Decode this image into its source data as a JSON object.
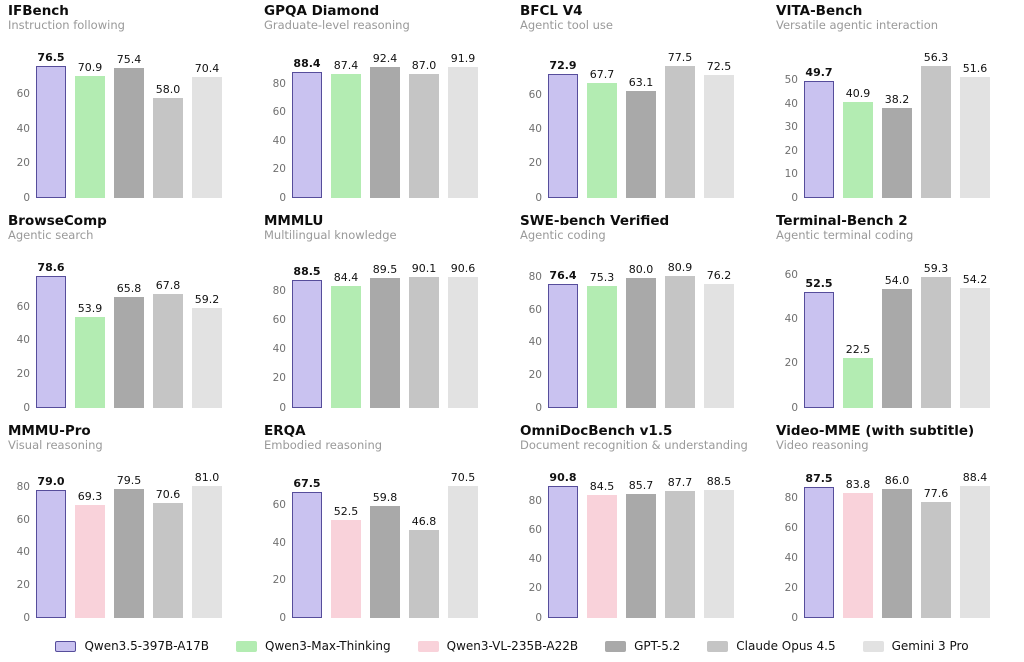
{
  "legend": [
    {
      "label": "Qwen3.5-397B-A17B",
      "color": "#c9c2f0",
      "border": "#564d9b"
    },
    {
      "label": "Qwen3-Max-Thinking",
      "color": "#b3ecb2"
    },
    {
      "label": "Qwen3-VL-235B-A22B",
      "color": "#f9d2da"
    },
    {
      "label": "GPT-5.2",
      "color": "#a9a9a9"
    },
    {
      "label": "Claude Opus 4.5",
      "color": "#c5c5c5"
    },
    {
      "label": "Gemini 3 Pro",
      "color": "#e2e2e2"
    }
  ],
  "chart_data": [
    {
      "type": "bar",
      "title": "IFBench",
      "subtitle": "Instruction following",
      "categories": [
        "Qwen3.5-397B-A17B",
        "Qwen3-Max-Thinking",
        "GPT-5.2",
        "Claude Opus 4.5",
        "Gemini 3 Pro"
      ],
      "values": [
        76.5,
        70.9,
        75.4,
        58.0,
        70.4
      ],
      "yticks": [
        0,
        20,
        40,
        60
      ],
      "ylim": [
        0,
        86
      ],
      "grid": false,
      "legend_position": "bottom-shared"
    },
    {
      "type": "bar",
      "title": "GPQA Diamond",
      "subtitle": "Graduate-level reasoning",
      "categories": [
        "Qwen3.5-397B-A17B",
        "Qwen3-Max-Thinking",
        "GPT-5.2",
        "Claude Opus 4.5",
        "Gemini 3 Pro"
      ],
      "values": [
        88.4,
        87.4,
        92.4,
        87.0,
        91.9
      ],
      "yticks": [
        0,
        20,
        40,
        60,
        80
      ],
      "ylim": [
        0,
        104
      ],
      "grid": false,
      "legend_position": "bottom-shared"
    },
    {
      "type": "bar",
      "title": "BFCL V4",
      "subtitle": "Agentic tool use",
      "categories": [
        "Qwen3.5-397B-A17B",
        "Qwen3-Max-Thinking",
        "GPT-5.2",
        "Claude Opus 4.5",
        "Gemini 3 Pro"
      ],
      "values": [
        72.9,
        67.7,
        63.1,
        77.5,
        72.5
      ],
      "yticks": [
        0,
        20,
        40,
        60
      ],
      "ylim": [
        0,
        87
      ],
      "grid": false,
      "legend_position": "bottom-shared"
    },
    {
      "type": "bar",
      "title": "VITA-Bench",
      "subtitle": "Versatile agentic interaction",
      "categories": [
        "Qwen3.5-397B-A17B",
        "Qwen3-Max-Thinking",
        "GPT-5.2",
        "Claude Opus 4.5",
        "Gemini 3 Pro"
      ],
      "values": [
        49.7,
        40.9,
        38.2,
        56.3,
        51.6
      ],
      "yticks": [
        0,
        10,
        20,
        30,
        40,
        50
      ],
      "ylim": [
        0,
        63
      ],
      "grid": false,
      "legend_position": "bottom-shared"
    },
    {
      "type": "bar",
      "title": "BrowseComp",
      "subtitle": "Agentic search",
      "categories": [
        "Qwen3.5-397B-A17B",
        "Qwen3-Max-Thinking",
        "GPT-5.2",
        "Claude Opus 4.5",
        "Gemini 3 Pro"
      ],
      "values": [
        78.6,
        53.9,
        65.8,
        67.8,
        59.2
      ],
      "yticks": [
        0,
        20,
        40,
        60
      ],
      "ylim": [
        0,
        88
      ],
      "grid": false,
      "legend_position": "bottom-shared"
    },
    {
      "type": "bar",
      "title": "MMMLU",
      "subtitle": "Multilingual knowledge",
      "categories": [
        "Qwen3.5-397B-A17B",
        "Qwen3-Max-Thinking",
        "GPT-5.2",
        "Claude Opus 4.5",
        "Gemini 3 Pro"
      ],
      "values": [
        88.5,
        84.4,
        89.5,
        90.1,
        90.6
      ],
      "yticks": [
        0,
        20,
        40,
        60,
        80
      ],
      "ylim": [
        0,
        102
      ],
      "grid": false,
      "legend_position": "bottom-shared"
    },
    {
      "type": "bar",
      "title": "SWE-bench Verified",
      "subtitle": "Agentic coding",
      "categories": [
        "Qwen3.5-397B-A17B",
        "Qwen3-Max-Thinking",
        "GPT-5.2",
        "Claude Opus 4.5",
        "Gemini 3 Pro"
      ],
      "values": [
        76.4,
        75.3,
        80.0,
        80.9,
        76.2
      ],
      "yticks": [
        0,
        20,
        40,
        60,
        80
      ],
      "ylim": [
        0,
        91
      ],
      "grid": false,
      "legend_position": "bottom-shared"
    },
    {
      "type": "bar",
      "title": "Terminal-Bench 2",
      "subtitle": "Agentic terminal coding",
      "categories": [
        "Qwen3.5-397B-A17B",
        "Qwen3-Max-Thinking",
        "GPT-5.2",
        "Claude Opus 4.5",
        "Gemini 3 Pro"
      ],
      "values": [
        52.5,
        22.5,
        54.0,
        59.3,
        54.2
      ],
      "yticks": [
        0,
        20,
        40,
        60
      ],
      "ylim": [
        0,
        67
      ],
      "grid": false,
      "legend_position": "bottom-shared"
    },
    {
      "type": "bar",
      "title": "MMMU-Pro",
      "subtitle": "Visual reasoning",
      "categories": [
        "Qwen3.5-397B-A17B",
        "Qwen3-VL-235B-A22B",
        "GPT-5.2",
        "Claude Opus 4.5",
        "Gemini 3 Pro"
      ],
      "values": [
        79.0,
        69.3,
        79.5,
        70.6,
        81.0
      ],
      "yticks": [
        0,
        20,
        40,
        60,
        80
      ],
      "ylim": [
        0,
        91
      ],
      "grid": false,
      "legend_position": "bottom-shared"
    },
    {
      "type": "bar",
      "title": "ERQA",
      "subtitle": "Embodied reasoning",
      "categories": [
        "Qwen3.5-397B-A17B",
        "Qwen3-VL-235B-A22B",
        "GPT-5.2",
        "Claude Opus 4.5",
        "Gemini 3 Pro"
      ],
      "values": [
        67.5,
        52.5,
        59.8,
        46.8,
        70.5
      ],
      "yticks": [
        0,
        20,
        40,
        60
      ],
      "ylim": [
        0,
        79
      ],
      "grid": false,
      "legend_position": "bottom-shared"
    },
    {
      "type": "bar",
      "title": "OmniDocBench v1.5",
      "subtitle": "Document recognition & understanding",
      "categories": [
        "Qwen3.5-397B-A17B",
        "Qwen3-VL-235B-A22B",
        "GPT-5.2",
        "Claude Opus 4.5",
        "Gemini 3 Pro"
      ],
      "values": [
        90.8,
        84.5,
        85.7,
        87.7,
        88.5
      ],
      "yticks": [
        0,
        20,
        40,
        60,
        80
      ],
      "ylim": [
        0,
        102
      ],
      "grid": false,
      "legend_position": "bottom-shared"
    },
    {
      "type": "bar",
      "title": "Video-MME (with subtitle)",
      "subtitle": "Video reasoning",
      "categories": [
        "Qwen3.5-397B-A17B",
        "Qwen3-VL-235B-A22B",
        "GPT-5.2",
        "Claude Opus 4.5",
        "Gemini 3 Pro"
      ],
      "values": [
        87.5,
        83.8,
        86.0,
        77.6,
        88.4
      ],
      "yticks": [
        0,
        20,
        40,
        60,
        80
      ],
      "ylim": [
        0,
        99
      ],
      "grid": false,
      "legend_position": "bottom-shared"
    }
  ]
}
